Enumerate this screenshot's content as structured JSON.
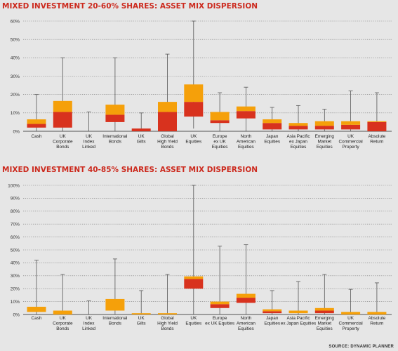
{
  "titles": {
    "chart1": "MIXED INVESTMENT 20-60% SHARES: ASSET MIX DISPERSION",
    "chart2": "MIXED INVESTMENT 40-85% SHARES: ASSET MIX DISPERSION"
  },
  "source": "SOURCE: DYNAMIC PLANNER",
  "colors": {
    "lower_box": "#d8321e",
    "upper_box": "#f5a00a",
    "whisker": "#555555",
    "grid": "#777777"
  },
  "chart_data": [
    {
      "type": "box",
      "title": "MIXED INVESTMENT 20-60% SHARES: ASSET MIX DISPERSION",
      "y_ticks": [
        "0%",
        "10%",
        "20%",
        "30%",
        "40%",
        "50%",
        "60%"
      ],
      "ylim": [
        0,
        60
      ],
      "grid": true,
      "categories": [
        [
          "Cash"
        ],
        [
          "UK",
          "Corporate",
          "Bonds"
        ],
        [
          "UK",
          "Index",
          "Linked"
        ],
        [
          "International",
          "Bonds"
        ],
        [
          "UK",
          "Gilts"
        ],
        [
          "Global",
          "High Yield",
          "Bonds"
        ],
        [
          "UK",
          "Equities"
        ],
        [
          "Europe",
          "ex UK",
          "Equities"
        ],
        [
          "North",
          "American",
          "Equities"
        ],
        [
          "Japan",
          "Equities"
        ],
        [
          "Asia Pacific",
          "ex Japan",
          "Equities"
        ],
        [
          "Emerging",
          "Market",
          "Equities"
        ],
        [
          "UK",
          "Commercial",
          "Property"
        ],
        [
          "Absolute",
          "Return"
        ]
      ],
      "boxes": [
        {
          "min": 0,
          "q1": 2,
          "median": 4,
          "q3": 6.5,
          "max": 20
        },
        {
          "min": 0,
          "q1": 2,
          "median": 10.5,
          "q3": 16.5,
          "max": 40
        },
        {
          "min": 0,
          "q1": 0,
          "median": 0,
          "q3": 0,
          "max": 10.5
        },
        {
          "min": 0,
          "q1": 5,
          "median": 9,
          "q3": 14.5,
          "max": 40
        },
        {
          "min": 0,
          "q1": 0,
          "median": 1.5,
          "q3": 1.5,
          "max": 10
        },
        {
          "min": 0,
          "q1": 0,
          "median": 10.5,
          "q3": 16,
          "max": 42
        },
        {
          "min": 1.5,
          "q1": 8,
          "median": 16,
          "q3": 25.5,
          "max": 60
        },
        {
          "min": 0,
          "q1": 4.5,
          "median": 6,
          "q3": 10.5,
          "max": 21
        },
        {
          "min": 0,
          "q1": 7,
          "median": 11,
          "q3": 13.5,
          "max": 24
        },
        {
          "min": 0,
          "q1": 1,
          "median": 4.5,
          "q3": 6.5,
          "max": 13
        },
        {
          "min": 0,
          "q1": 1,
          "median": 3,
          "q3": 4.5,
          "max": 14
        },
        {
          "min": 0,
          "q1": 1,
          "median": 3,
          "q3": 5.5,
          "max": 12
        },
        {
          "min": 0,
          "q1": 1,
          "median": 3.5,
          "q3": 5.5,
          "max": 22
        },
        {
          "min": 0,
          "q1": 0,
          "median": 5,
          "q3": 5.5,
          "max": 21
        }
      ]
    },
    {
      "type": "box",
      "title": "MIXED INVESTMENT 40-85% SHARES: ASSET MIX DISPERSION",
      "y_ticks": [
        "0%",
        "10%",
        "20%",
        "30%",
        "40%",
        "50%",
        "60%",
        "70%",
        "80%",
        "90%",
        "100%"
      ],
      "ylim": [
        0,
        100
      ],
      "grid": true,
      "categories": [
        [
          "Cash"
        ],
        [
          "UK",
          "Corporate",
          "Bonds"
        ],
        [
          "UK",
          "Index",
          "Linked"
        ],
        [
          "International",
          "Bonds"
        ],
        [
          "UK",
          "Gilts"
        ],
        [
          "Global",
          "High Yield",
          "Bonds"
        ],
        [
          "UK",
          "Equities"
        ],
        [
          "Europe",
          "ex UK Equities"
        ],
        [
          "North",
          "American",
          "Equities"
        ],
        [
          "Japan",
          "Equities"
        ],
        [
          "Asia Pacific",
          "ex Japan Equities"
        ],
        [
          "Emerging",
          "Market",
          "Equities"
        ],
        [
          "UK",
          "Commercial",
          "Property"
        ],
        [
          "Absolute",
          "Return"
        ]
      ],
      "boxes": [
        {
          "min": 0,
          "q1": 2,
          "median": 2,
          "q3": 6,
          "max": 42
        },
        {
          "min": 0,
          "q1": 0,
          "median": 0,
          "q3": 3,
          "max": 31
        },
        {
          "min": 0,
          "q1": 0,
          "median": 0,
          "q3": 0,
          "max": 10.5
        },
        {
          "min": 0,
          "q1": 3,
          "median": 3,
          "q3": 12,
          "max": 43
        },
        {
          "min": 0,
          "q1": 0,
          "median": 0,
          "q3": 1,
          "max": 18.5
        },
        {
          "min": 0,
          "q1": 0,
          "median": 0,
          "q3": 1,
          "max": 31
        },
        {
          "min": 0,
          "q1": 20,
          "median": 27.5,
          "q3": 29.5,
          "max": 100
        },
        {
          "min": 0,
          "q1": 5,
          "median": 8,
          "q3": 10,
          "max": 53
        },
        {
          "min": 0,
          "q1": 9,
          "median": 13,
          "q3": 16,
          "max": 54
        },
        {
          "min": 0,
          "q1": 1,
          "median": 2.5,
          "q3": 4,
          "max": 18.5
        },
        {
          "min": 0,
          "q1": 1,
          "median": 1,
          "q3": 3,
          "max": 25.5
        },
        {
          "min": 0,
          "q1": 1,
          "median": 3,
          "q3": 5,
          "max": 31
        },
        {
          "min": 0,
          "q1": 0,
          "median": 0,
          "q3": 2,
          "max": 19.5
        },
        {
          "min": 0,
          "q1": 0,
          "median": 0,
          "q3": 2,
          "max": 24.5
        }
      ]
    }
  ]
}
